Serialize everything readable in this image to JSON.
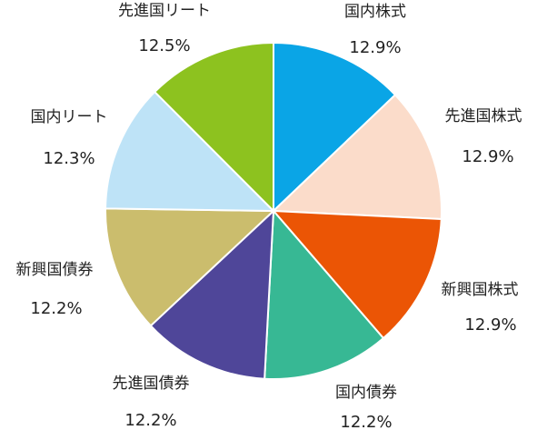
{
  "chart_data": {
    "type": "pie",
    "title": "",
    "start": "12 o'clock",
    "direction": "clockwise",
    "slices": [
      {
        "name": "国内株式",
        "value": 12.9,
        "label": "12.9%",
        "color": "#0aa5e6"
      },
      {
        "name": "先進国株式",
        "value": 12.9,
        "label": "12.9%",
        "color": "#fbdcca"
      },
      {
        "name": "新興国株式",
        "value": 12.9,
        "label": "12.9%",
        "color": "#eb5505"
      },
      {
        "name": "国内債券",
        "value": 12.2,
        "label": "12.2%",
        "color": "#37b894"
      },
      {
        "name": "先進国債券",
        "value": 12.2,
        "label": "12.2%",
        "color": "#4f4699"
      },
      {
        "name": "新興国債券",
        "value": 12.2,
        "label": "12.2%",
        "color": "#cbbd6d"
      },
      {
        "name": "国内リート",
        "value": 12.3,
        "label": "12.3%",
        "color": "#bee3f7"
      },
      {
        "name": "先進国リート",
        "value": 12.5,
        "label": "12.5%",
        "color": "#8dc21f"
      }
    ]
  }
}
